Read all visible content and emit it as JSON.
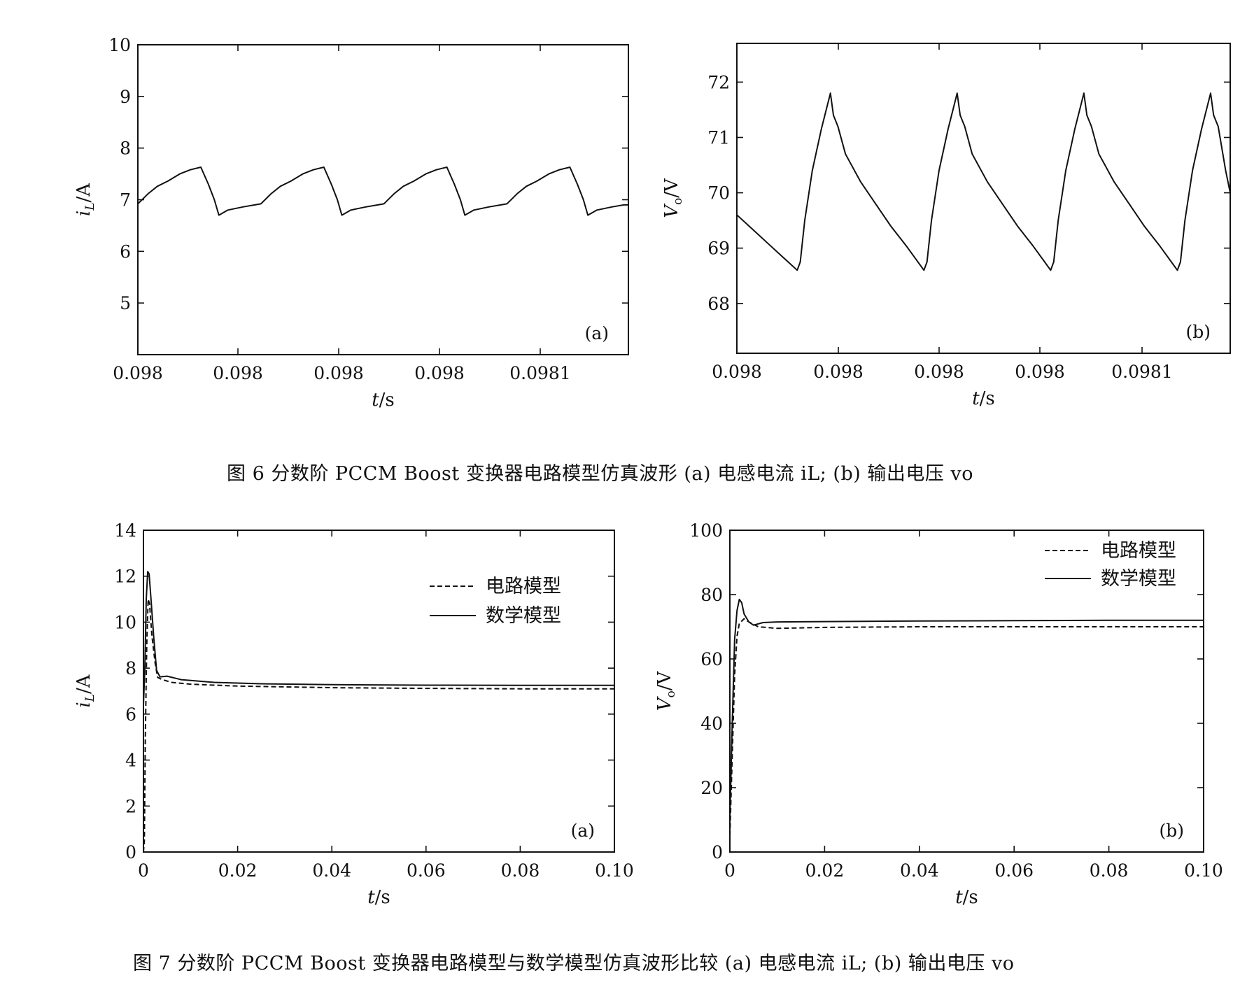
{
  "figure6": {
    "caption": "图 6 分数阶 PCCM Boost 变换器电路模型仿真波形 (a) 电感电流 iL; (b) 输出电压 vo",
    "panels": [
      {
        "panel_label": "(a)",
        "chart_data": {
          "type": "line",
          "ylabel": "iL/A",
          "xlabel": "t/s",
          "ylim": [
            4,
            10
          ],
          "yticks": [
            "5",
            "6",
            "7",
            "8",
            "9",
            "10"
          ],
          "xticks": [
            "0.098",
            "0.098",
            "0.098",
            "0.098",
            "0.0981"
          ],
          "series": [
            {
              "x": [
                0,
                0.35,
                0.65,
                1.0,
                1.4,
                1.75,
                2.1,
                2.35,
                2.55,
                2.7,
                3.0,
                3.5,
                3.9,
                4.1,
                4.45,
                4.75,
                5.1,
                5.5,
                5.85,
                6.2,
                6.45,
                6.65,
                6.8,
                7.1,
                7.6,
                8.0,
                8.2,
                8.55,
                8.85,
                9.2,
                9.6,
                9.95,
                10.3,
                10.55,
                10.75,
                10.9,
                11.2,
                11.7,
                12.1,
                12.3,
                12.65,
                12.95,
                13.3,
                13.7,
                14.05,
                14.4,
                14.65,
                14.85,
                15.0,
                15.3,
                15.8,
                16.2,
                16.35
              ],
              "values": [
                6.92,
                7.12,
                7.26,
                7.36,
                7.5,
                7.58,
                7.63,
                7.3,
                7.0,
                6.7,
                6.8,
                6.86,
                6.9,
                6.92,
                7.12,
                7.26,
                7.36,
                7.5,
                7.58,
                7.63,
                7.3,
                7.0,
                6.7,
                6.8,
                6.86,
                6.9,
                6.92,
                7.12,
                7.26,
                7.36,
                7.5,
                7.58,
                7.63,
                7.3,
                7.0,
                6.7,
                6.8,
                6.86,
                6.9,
                6.92,
                7.12,
                7.26,
                7.36,
                7.5,
                7.58,
                7.63,
                7.3,
                7.0,
                6.7,
                6.8,
                6.86,
                6.9,
                6.9
              ]
            }
          ]
        }
      },
      {
        "panel_label": "(b)",
        "chart_data": {
          "type": "line",
          "ylabel": "Vo/V",
          "xlabel": "t/s",
          "ylim": [
            67.1,
            72.7
          ],
          "yticks": [
            "68",
            "69",
            "70",
            "71",
            "72"
          ],
          "xticks": [
            "0.098",
            "0.098",
            "0.098",
            "0.098",
            "0.0981"
          ],
          "series": [
            {
              "x": [
                0,
                0.5,
                1.0,
                1.5,
                2.0,
                2.1,
                2.25,
                2.5,
                2.8,
                3.1,
                3.2,
                3.35,
                3.6,
                4.1,
                4.6,
                5.1,
                5.6,
                6.2,
                6.3,
                6.45,
                6.7,
                7.0,
                7.3,
                7.4,
                7.55,
                7.8,
                8.3,
                8.8,
                9.3,
                9.8,
                10.4,
                10.5,
                10.65,
                10.9,
                11.2,
                11.5,
                11.6,
                11.75,
                12.0,
                12.5,
                13.0,
                13.5,
                14.0,
                14.6,
                14.7,
                14.85,
                15.1,
                15.4,
                15.7,
                15.8,
                15.95,
                16.2,
                16.35
              ],
              "values": [
                69.6,
                69.35,
                69.1,
                68.85,
                68.6,
                68.75,
                69.5,
                70.4,
                71.15,
                71.8,
                71.4,
                71.2,
                70.7,
                70.2,
                69.8,
                69.4,
                69.05,
                68.6,
                68.75,
                69.5,
                70.4,
                71.15,
                71.8,
                71.4,
                71.2,
                70.7,
                70.2,
                69.8,
                69.4,
                69.05,
                68.6,
                68.75,
                69.5,
                70.4,
                71.15,
                71.8,
                71.4,
                71.2,
                70.7,
                70.2,
                69.8,
                69.4,
                69.05,
                68.6,
                68.75,
                69.5,
                70.4,
                71.15,
                71.8,
                71.4,
                71.2,
                70.4,
                70.0
              ]
            }
          ]
        }
      }
    ]
  },
  "figure7": {
    "caption": "图 7 分数阶 PCCM Boost 变换器电路模型与数学模型仿真波形比较 (a) 电感电流 iL; (b) 输出电压 vo",
    "panels": [
      {
        "panel_label": "(a)",
        "chart_data": {
          "type": "line",
          "ylabel": "iL/A",
          "xlabel": "t/s",
          "xlim": [
            0,
            0.1
          ],
          "ylim": [
            0,
            14
          ],
          "xticks": [
            "0",
            "0.02",
            "0.04",
            "0.06",
            "0.08",
            "0.10"
          ],
          "yticks": [
            "0",
            "2",
            "4",
            "6",
            "8",
            "10",
            "12",
            "14"
          ],
          "legend": "top-right",
          "series": [
            {
              "name": "电路模型",
              "dash": true,
              "x": [
                0,
                0.0002,
                0.0004,
                0.0007,
                0.001,
                0.0013,
                0.0018,
                0.0025,
                0.003,
                0.004,
                0.006,
                0.01,
                0.02,
                0.04,
                0.06,
                0.08,
                0.1
              ],
              "values": [
                0,
                0.5,
                5.0,
                9.0,
                11.0,
                10.8,
                9.4,
                8.2,
                7.6,
                7.5,
                7.38,
                7.3,
                7.22,
                7.15,
                7.12,
                7.1,
                7.1
              ]
            },
            {
              "name": "数学模型",
              "dash": false,
              "x": [
                0,
                0.0003,
                0.0006,
                0.0009,
                0.0012,
                0.0016,
                0.0022,
                0.0028,
                0.0035,
                0.005,
                0.008,
                0.015,
                0.025,
                0.04,
                0.06,
                0.08,
                0.1
              ],
              "values": [
                6.4,
                8.0,
                11.0,
                12.2,
                12.1,
                11.0,
                9.3,
                7.9,
                7.62,
                7.65,
                7.5,
                7.38,
                7.32,
                7.28,
                7.26,
                7.25,
                7.25
              ]
            }
          ]
        }
      },
      {
        "panel_label": "(b)",
        "chart_data": {
          "type": "line",
          "ylabel": "Vo/V",
          "xlabel": "t/s",
          "xlim": [
            0,
            0.1
          ],
          "ylim": [
            0,
            100
          ],
          "xticks": [
            "0",
            "0.02",
            "0.04",
            "0.06",
            "0.08",
            "0.10"
          ],
          "yticks": [
            "0",
            "20",
            "40",
            "60",
            "80",
            "100"
          ],
          "legend": "top-right",
          "series": [
            {
              "name": "电路模型",
              "dash": true,
              "x": [
                0,
                0.0005,
                0.001,
                0.0015,
                0.002,
                0.003,
                0.004,
                0.006,
                0.01,
                0.02,
                0.04,
                0.06,
                0.08,
                0.1
              ],
              "values": [
                5,
                30,
                55,
                67,
                71,
                72.5,
                71.5,
                70,
                69.5,
                69.8,
                70,
                70,
                70,
                70
              ]
            },
            {
              "name": "数学模型",
              "dash": false,
              "x": [
                0,
                0.0005,
                0.001,
                0.0015,
                0.002,
                0.0025,
                0.003,
                0.004,
                0.005,
                0.007,
                0.01,
                0.02,
                0.04,
                0.06,
                0.08,
                0.1
              ],
              "values": [
                10,
                40,
                66,
                75,
                78.5,
                77.5,
                74,
                71.5,
                70.5,
                71.3,
                71.5,
                71.6,
                71.8,
                71.9,
                72,
                72
              ]
            }
          ]
        }
      }
    ]
  }
}
